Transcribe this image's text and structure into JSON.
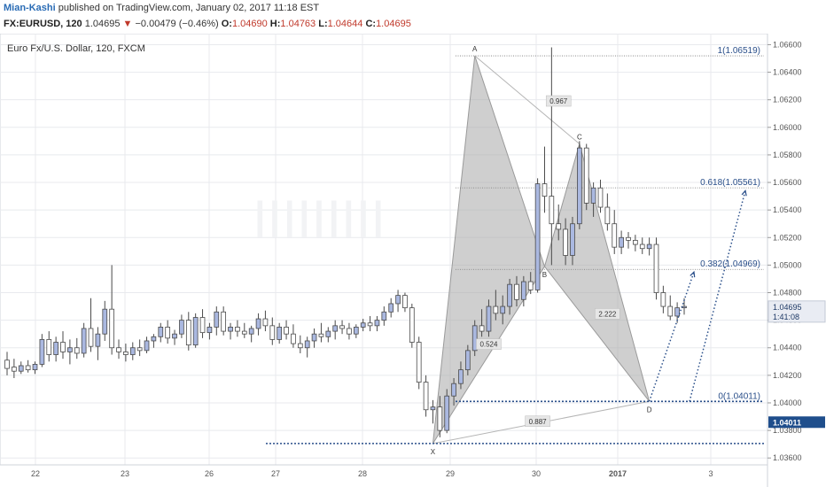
{
  "header": {
    "author": "Mian-Kashi",
    "published": "published on TradingView.com, January 02, 2017 11:18 EST",
    "symbol": "FX:EURUSD, 120",
    "last": "1.04695",
    "change_arrow": "▼",
    "change": "−0.00479 (−0.46%)",
    "open_label": "O:",
    "open": "1.04690",
    "high_label": "H:",
    "high": "1.04763",
    "low_label": "L:",
    "low": "1.04644",
    "close_label": "C:",
    "close": "1.04695"
  },
  "colors": {
    "candle_up_fill": "#aab8e0",
    "candle_down_fill": "#ffffff",
    "candle_stroke": "#4a4a4a",
    "pattern_fill": "#a8a8a8",
    "level_line": "#2a4f8a",
    "price_badge": "#1f4e8c",
    "grid": "#e8eaee"
  },
  "chart_data": {
    "type": "candlestick",
    "title": "Euro Fx/U.S. Dollar, 120, FXCM",
    "watermark": "IIIIIIIII",
    "x_tick_labels": [
      "22",
      "23",
      "26",
      "27",
      "28",
      "29",
      "30",
      "2017",
      "3"
    ],
    "y_ticks": [
      "1.06600",
      "1.06400",
      "1.06200",
      "1.06000",
      "1.05800",
      "1.05600",
      "1.05400",
      "1.05200",
      "1.05000",
      "1.04800",
      "1.04600",
      "1.04400",
      "1.04200",
      "1.04000",
      "1.03800",
      "1.03600"
    ],
    "ylim": [
      1.0355,
      1.0668
    ],
    "candles": [
      [
        1.0431,
        1.0437,
        1.042,
        1.0425
      ],
      [
        1.0426,
        1.0432,
        1.0418,
        1.0423
      ],
      [
        1.0423,
        1.043,
        1.0421,
        1.0427
      ],
      [
        1.0427,
        1.0431,
        1.0422,
        1.0424
      ],
      [
        1.0424,
        1.043,
        1.0421,
        1.0428
      ],
      [
        1.0428,
        1.045,
        1.0426,
        1.0446
      ],
      [
        1.0446,
        1.0452,
        1.043,
        1.0435
      ],
      [
        1.0435,
        1.0448,
        1.043,
        1.0444
      ],
      [
        1.0444,
        1.0452,
        1.0432,
        1.0437
      ],
      [
        1.0437,
        1.0446,
        1.0428,
        1.044
      ],
      [
        1.044,
        1.0447,
        1.0432,
        1.0436
      ],
      [
        1.0436,
        1.0458,
        1.0433,
        1.0454
      ],
      [
        1.0454,
        1.0476,
        1.0437,
        1.0441
      ],
      [
        1.0441,
        1.0455,
        1.0431,
        1.045
      ],
      [
        1.045,
        1.0474,
        1.0445,
        1.0468
      ],
      [
        1.0468,
        1.05,
        1.0435,
        1.044
      ],
      [
        1.044,
        1.0446,
        1.0432,
        1.0437
      ],
      [
        1.0437,
        1.0443,
        1.043,
        1.0435
      ],
      [
        1.0435,
        1.0444,
        1.0431,
        1.044
      ],
      [
        1.044,
        1.0446,
        1.0434,
        1.0438
      ],
      [
        1.0438,
        1.0448,
        1.0436,
        1.0445
      ],
      [
        1.0445,
        1.045,
        1.044,
        1.0448
      ],
      [
        1.0448,
        1.0458,
        1.0444,
        1.0455
      ],
      [
        1.0455,
        1.046,
        1.0443,
        1.0447
      ],
      [
        1.0447,
        1.0453,
        1.0442,
        1.045
      ],
      [
        1.045,
        1.0464,
        1.0447,
        1.046
      ],
      [
        1.046,
        1.0466,
        1.0438,
        1.0442
      ],
      [
        1.0442,
        1.0465,
        1.044,
        1.0462
      ],
      [
        1.0462,
        1.0468,
        1.0447,
        1.0451
      ],
      [
        1.0451,
        1.0458,
        1.0446,
        1.0455
      ],
      [
        1.0455,
        1.047,
        1.0449,
        1.0466
      ],
      [
        1.0466,
        1.047,
        1.0449,
        1.0452
      ],
      [
        1.0452,
        1.0458,
        1.0446,
        1.0455
      ],
      [
        1.0455,
        1.046,
        1.0448,
        1.0452
      ],
      [
        1.0452,
        1.0458,
        1.0447,
        1.045
      ],
      [
        1.045,
        1.0456,
        1.0444,
        1.0454
      ],
      [
        1.0454,
        1.0465,
        1.0449,
        1.0461
      ],
      [
        1.0461,
        1.0467,
        1.0452,
        1.0456
      ],
      [
        1.0456,
        1.0462,
        1.0442,
        1.0446
      ],
      [
        1.0446,
        1.0458,
        1.0443,
        1.0455
      ],
      [
        1.0455,
        1.046,
        1.0446,
        1.045
      ],
      [
        1.045,
        1.0457,
        1.044,
        1.0443
      ],
      [
        1.0443,
        1.0449,
        1.0436,
        1.044
      ],
      [
        1.044,
        1.0448,
        1.0433,
        1.0445
      ],
      [
        1.0445,
        1.0454,
        1.044,
        1.045
      ],
      [
        1.045,
        1.0458,
        1.0444,
        1.0448
      ],
      [
        1.0448,
        1.0455,
        1.0444,
        1.0452
      ],
      [
        1.0452,
        1.046,
        1.0446,
        1.0456
      ],
      [
        1.0456,
        1.046,
        1.045,
        1.0454
      ],
      [
        1.0454,
        1.0458,
        1.0446,
        1.045
      ],
      [
        1.045,
        1.0457,
        1.0447,
        1.0455
      ],
      [
        1.0455,
        1.0461,
        1.0452,
        1.0458
      ],
      [
        1.0458,
        1.0463,
        1.0452,
        1.0456
      ],
      [
        1.0456,
        1.0463,
        1.0452,
        1.046
      ],
      [
        1.046,
        1.047,
        1.0456,
        1.0466
      ],
      [
        1.0466,
        1.0476,
        1.0462,
        1.0472
      ],
      [
        1.0472,
        1.0482,
        1.0466,
        1.0478
      ],
      [
        1.0478,
        1.048,
        1.0466,
        1.0469
      ],
      [
        1.0469,
        1.0472,
        1.044,
        1.0444
      ],
      [
        1.0444,
        1.0448,
        1.041,
        1.0415
      ],
      [
        1.0415,
        1.042,
        1.039,
        1.0395
      ],
      [
        1.0395,
        1.0402,
        1.0385,
        1.0397
      ],
      [
        1.0397,
        1.0405,
        1.0375,
        1.038
      ],
      [
        1.038,
        1.041,
        1.0378,
        1.0405
      ],
      [
        1.0405,
        1.0418,
        1.0398,
        1.0414
      ],
      [
        1.0414,
        1.043,
        1.041,
        1.0424
      ],
      [
        1.0424,
        1.0442,
        1.042,
        1.0438
      ],
      [
        1.0438,
        1.046,
        1.0434,
        1.0456
      ],
      [
        1.0456,
        1.0468,
        1.0448,
        1.0452
      ],
      [
        1.0452,
        1.0475,
        1.0448,
        1.047
      ],
      [
        1.047,
        1.0482,
        1.046,
        1.0465
      ],
      [
        1.0465,
        1.0478,
        1.0457,
        1.047
      ],
      [
        1.047,
        1.049,
        1.0464,
        1.0486
      ],
      [
        1.0486,
        1.0492,
        1.047,
        1.0475
      ],
      [
        1.0475,
        1.0492,
        1.047,
        1.0488
      ],
      [
        1.0488,
        1.0495,
        1.0479,
        1.0482
      ],
      [
        1.0482,
        1.0563,
        1.048,
        1.0559
      ],
      [
        1.0559,
        1.0586,
        1.0538,
        1.055
      ],
      [
        1.055,
        1.0658,
        1.05,
        1.053
      ],
      [
        1.053,
        1.0544,
        1.0518,
        1.0526
      ],
      [
        1.0526,
        1.0534,
        1.05,
        1.0507
      ],
      [
        1.0507,
        1.0535,
        1.05,
        1.053
      ],
      [
        1.053,
        1.059,
        1.0526,
        1.0585
      ],
      [
        1.0585,
        1.0588,
        1.054,
        1.0545
      ],
      [
        1.0545,
        1.056,
        1.0535,
        1.0556
      ],
      [
        1.0556,
        1.0562,
        1.0538,
        1.0542
      ],
      [
        1.0542,
        1.0552,
        1.0525,
        1.053
      ],
      [
        1.053,
        1.054,
        1.0508,
        1.0513
      ],
      [
        1.0513,
        1.0525,
        1.0508,
        1.052
      ],
      [
        1.052,
        1.0524,
        1.0512,
        1.0518
      ],
      [
        1.0518,
        1.0522,
        1.051,
        1.0515
      ],
      [
        1.0515,
        1.052,
        1.0508,
        1.0512
      ],
      [
        1.0512,
        1.052,
        1.0507,
        1.0515
      ],
      [
        1.0515,
        1.052,
        1.0475,
        1.048
      ],
      [
        1.048,
        1.0485,
        1.0465,
        1.047
      ],
      [
        1.047,
        1.0478,
        1.046,
        1.0463
      ],
      [
        1.0463,
        1.0473,
        1.0458,
        1.0469
      ],
      [
        1.0469,
        1.0476,
        1.0464,
        1.047
      ]
    ],
    "pattern_points": [
      {
        "label": "X",
        "bar": 61,
        "price": 1.03705
      },
      {
        "label": "A",
        "bar": 67,
        "price": 1.06519
      },
      {
        "label": "B",
        "bar": 77,
        "price": 1.0499
      },
      {
        "label": "C",
        "bar": 82,
        "price": 1.0588
      },
      {
        "label": "D",
        "bar": 92,
        "price": 1.04011
      }
    ],
    "ratio_labels": [
      {
        "text": "0.524",
        "bar": 69,
        "price": 1.0442
      },
      {
        "text": "0.967",
        "bar": 79,
        "price": 1.06185
      },
      {
        "text": "2.222",
        "bar": 86,
        "price": 1.0464
      },
      {
        "text": "0.887",
        "bar": 76,
        "price": 1.0386
      }
    ],
    "fib_levels": [
      {
        "label": "1(1.06519)",
        "price": 1.06519
      },
      {
        "label": "0.618(1.05561)",
        "price": 1.05561
      },
      {
        "label": "0.382(1.04969)",
        "price": 1.04969
      },
      {
        "label": "0(1.04011)",
        "price": 1.04011
      }
    ],
    "horizontal_levels": [
      1.04011,
      1.03705
    ],
    "price_badge_main": "1.04695",
    "price_badge_time": "1:41:08",
    "price_badge_level": "1.04011"
  }
}
